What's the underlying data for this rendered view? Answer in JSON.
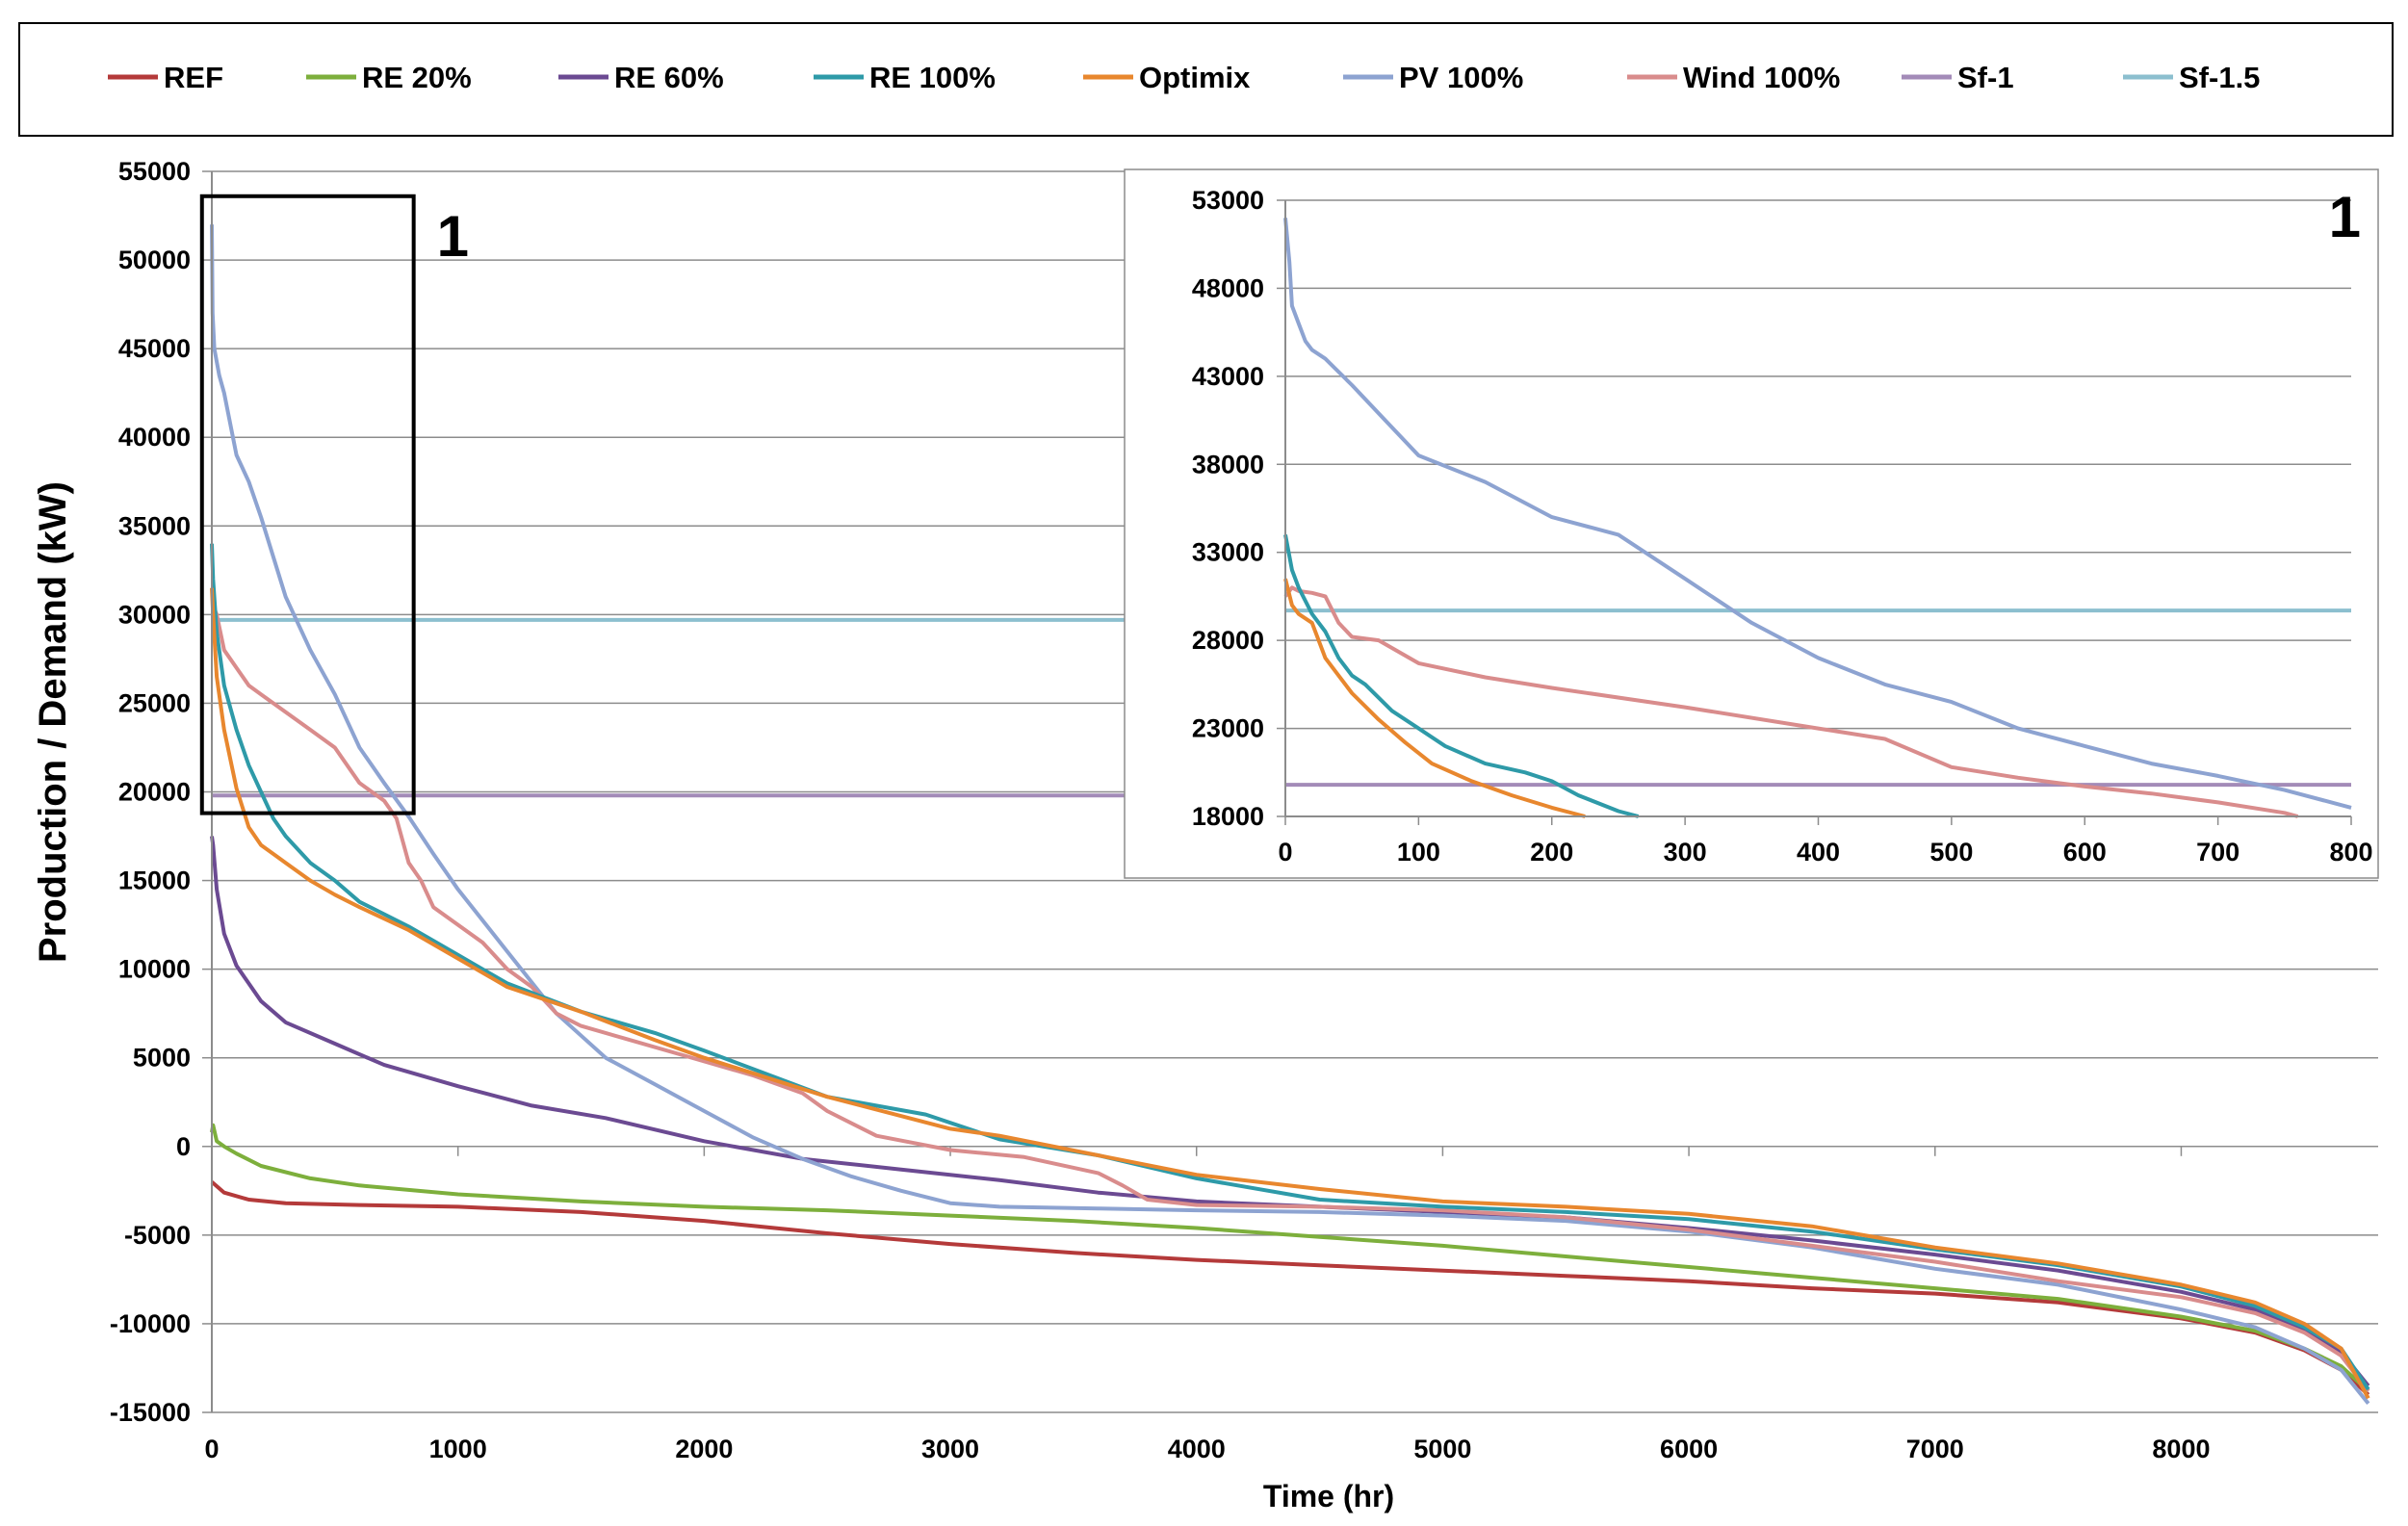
{
  "chart_data": [
    {
      "id": "main",
      "type": "line",
      "xlabel": "Time (hr)",
      "ylabel": "Production / Demand (kW)",
      "xlim": [
        0,
        8800
      ],
      "ylim": [
        -15000,
        55000
      ],
      "grid": true,
      "legend_position": "top",
      "xticks": [
        0,
        1000,
        2000,
        3000,
        4000,
        5000,
        6000,
        7000,
        8000
      ],
      "xtick_labels": [
        "0",
        "1000",
        "2000",
        "3000",
        "4000",
        "5000",
        "6000",
        "7000",
        "8000"
      ],
      "yticks": [
        55000,
        50000,
        45000,
        40000,
        35000,
        30000,
        25000,
        20000,
        15000,
        10000,
        5000,
        0,
        -5000,
        -10000,
        -15000
      ],
      "ytick_labels": [
        "55000",
        "50000",
        "45000",
        "40000",
        "35000",
        "30000",
        "25000",
        "20000",
        "15000",
        "10000",
        "5000",
        "0",
        "-5000",
        "-10000",
        "-15000"
      ],
      "zoom_box": {
        "x": [
          -40,
          820
        ],
        "y": [
          18800,
          53600
        ],
        "label": "1"
      },
      "series": [
        {
          "name": "REF",
          "color": "#B43A3A",
          "x": [
            0,
            50,
            150,
            300,
            600,
            1000,
            1500,
            2000,
            2500,
            3000,
            3500,
            4000,
            4500,
            5000,
            5500,
            6000,
            6500,
            7000,
            7500,
            8000,
            8300,
            8500,
            8650,
            8760
          ],
          "y": [
            -2000,
            -2600,
            -3000,
            -3200,
            -3300,
            -3400,
            -3700,
            -4200,
            -4900,
            -5500,
            -6000,
            -6400,
            -6700,
            -7000,
            -7300,
            -7600,
            -8000,
            -8300,
            -8800,
            -9700,
            -10500,
            -11500,
            -12600,
            -14000
          ]
        },
        {
          "name": "RE 20%",
          "color": "#7DAF3C",
          "x": [
            0,
            5,
            20,
            50,
            100,
            200,
            400,
            600,
            1000,
            1500,
            2000,
            2500,
            3000,
            3500,
            4000,
            4500,
            5000,
            5500,
            6000,
            6500,
            7000,
            7500,
            8000,
            8300,
            8500,
            8650,
            8760
          ],
          "y": [
            800,
            1200,
            300,
            0,
            -400,
            -1100,
            -1800,
            -2200,
            -2700,
            -3100,
            -3400,
            -3600,
            -3900,
            -4200,
            -4600,
            -5100,
            -5600,
            -6200,
            -6800,
            -7400,
            -8000,
            -8600,
            -9600,
            -10400,
            -11400,
            -12400,
            -13800
          ]
        },
        {
          "name": "RE 60%",
          "color": "#6B4A92",
          "x": [
            0,
            5,
            20,
            50,
            100,
            200,
            300,
            500,
            700,
            1000,
            1300,
            1600,
            2000,
            2400,
            2800,
            3200,
            3600,
            4000,
            4500,
            5000,
            5500,
            6000,
            6500,
            7000,
            7500,
            8000,
            8300,
            8500,
            8650,
            8760
          ],
          "y": [
            17500,
            17000,
            14500,
            12000,
            10200,
            8200,
            7000,
            5800,
            4600,
            3400,
            2300,
            1600,
            300,
            -700,
            -1300,
            -1900,
            -2600,
            -3100,
            -3400,
            -3700,
            -4000,
            -4600,
            -5300,
            -6100,
            -7000,
            -8200,
            -9200,
            -10400,
            -11600,
            -13500
          ]
        },
        {
          "name": "RE 100%",
          "color": "#2E9AA8",
          "x": [
            0,
            5,
            20,
            50,
            100,
            150,
            200,
            250,
            300,
            400,
            500,
            600,
            800,
            1000,
            1200,
            1500,
            1800,
            2000,
            2500,
            2900,
            3200,
            3600,
            4000,
            4500,
            5000,
            5500,
            6000,
            6500,
            7000,
            7500,
            8000,
            8300,
            8500,
            8650,
            8760
          ],
          "y": [
            34000,
            32000,
            29000,
            26000,
            23500,
            21500,
            20000,
            18500,
            17500,
            16000,
            15000,
            13800,
            12400,
            10800,
            9200,
            7600,
            6400,
            5400,
            2800,
            1800,
            400,
            -500,
            -1800,
            -3000,
            -3400,
            -3700,
            -4100,
            -4800,
            -5800,
            -6700,
            -7900,
            -9000,
            -10200,
            -11400,
            -13700
          ]
        },
        {
          "name": "Optimix",
          "color": "#E8872E",
          "x": [
            0,
            5,
            20,
            50,
            100,
            150,
            200,
            300,
            400,
            500,
            600,
            800,
            1000,
            1200,
            1500,
            1800,
            2000,
            2500,
            3000,
            3200,
            3600,
            4000,
            4500,
            5000,
            5500,
            6000,
            6500,
            7000,
            7500,
            8000,
            8300,
            8500,
            8650,
            8760
          ],
          "y": [
            31500,
            30000,
            26500,
            23500,
            20200,
            18000,
            17000,
            16000,
            15000,
            14200,
            13500,
            12200,
            10600,
            9000,
            7600,
            6000,
            5000,
            2800,
            1000,
            600,
            -500,
            -1600,
            -2400,
            -3100,
            -3400,
            -3800,
            -4500,
            -5700,
            -6600,
            -7800,
            -8800,
            -10000,
            -11400,
            -14200
          ]
        },
        {
          "name": "PV 100%",
          "color": "#8DA3D1",
          "x": [
            0,
            3,
            10,
            30,
            50,
            100,
            150,
            200,
            300,
            400,
            500,
            600,
            700,
            800,
            900,
            1000,
            1200,
            1400,
            1600,
            1800,
            2000,
            2200,
            2400,
            2600,
            2800,
            3000,
            3200,
            3600,
            4000,
            4500,
            5000,
            5500,
            6000,
            6500,
            7000,
            7500,
            8000,
            8300,
            8500,
            8650,
            8760
          ],
          "y": [
            52000,
            47000,
            45000,
            43500,
            42500,
            39000,
            37500,
            35500,
            31000,
            28000,
            25500,
            22500,
            20500,
            18600,
            16500,
            14500,
            11000,
            7500,
            5000,
            3500,
            2000,
            500,
            -700,
            -1700,
            -2500,
            -3200,
            -3400,
            -3500,
            -3600,
            -3700,
            -3900,
            -4200,
            -4800,
            -5700,
            -6900,
            -7800,
            -9200,
            -10200,
            -11400,
            -12600,
            -14500
          ]
        },
        {
          "name": "Wind 100%",
          "color": "#D98C8C",
          "x": [
            0,
            5,
            20,
            50,
            100,
            150,
            200,
            300,
            400,
            500,
            600,
            700,
            750,
            800,
            850,
            900,
            1000,
            1100,
            1200,
            1300,
            1400,
            1500,
            1700,
            1900,
            2200,
            2400,
            2500,
            2700,
            3000,
            3300,
            3600,
            3700,
            3800,
            4000,
            4500,
            5000,
            5500,
            6000,
            6500,
            7000,
            7500,
            8000,
            8300,
            8500,
            8650,
            8760
          ],
          "y": [
            30500,
            30500,
            30000,
            28000,
            27000,
            26000,
            25500,
            24500,
            23500,
            22500,
            20500,
            19500,
            18500,
            16000,
            15000,
            13500,
            12500,
            11500,
            10000,
            9000,
            7500,
            6800,
            6000,
            5200,
            4000,
            3000,
            2000,
            600,
            -200,
            -600,
            -1500,
            -2200,
            -3000,
            -3300,
            -3400,
            -3600,
            -4000,
            -4700,
            -5600,
            -6500,
            -7600,
            -8500,
            -9400,
            -10500,
            -11800,
            -13800
          ]
        },
        {
          "name": "Sf-1",
          "color": "#A38BB8",
          "x": [
            0,
            8800
          ],
          "y": [
            19800,
            19800
          ]
        },
        {
          "name": "Sf-1.5",
          "color": "#8CBFCF",
          "x": [
            0,
            8800
          ],
          "y": [
            29700,
            29700
          ]
        }
      ]
    },
    {
      "id": "inset",
      "type": "line",
      "label": "1",
      "xlim": [
        0,
        800
      ],
      "ylim": [
        18000,
        53000
      ],
      "grid": true,
      "xticks": [
        0,
        100,
        200,
        300,
        400,
        500,
        600,
        700,
        800
      ],
      "xtick_labels": [
        "0",
        "100",
        "200",
        "300",
        "400",
        "500",
        "600",
        "700",
        "800"
      ],
      "yticks": [
        53000,
        48000,
        43000,
        38000,
        33000,
        28000,
        23000,
        18000
      ],
      "ytick_labels": [
        "53000",
        "48000",
        "43000",
        "38000",
        "33000",
        "28000",
        "23000",
        "18000"
      ],
      "series": [
        {
          "name": "PV 100%",
          "color": "#8DA3D1",
          "x": [
            0,
            3,
            5,
            10,
            15,
            20,
            30,
            50,
            75,
            100,
            150,
            200,
            250,
            300,
            350,
            400,
            450,
            500,
            550,
            600,
            650,
            700,
            750,
            800
          ],
          "y": [
            52000,
            49500,
            47000,
            46000,
            45000,
            44500,
            44000,
            42500,
            40500,
            38500,
            37000,
            35000,
            34000,
            31500,
            29000,
            27000,
            25500,
            24500,
            23000,
            22000,
            21000,
            20300,
            19500,
            18500
          ]
        },
        {
          "name": "RE 100%",
          "color": "#2E9AA8",
          "x": [
            0,
            5,
            10,
            20,
            30,
            40,
            50,
            60,
            80,
            100,
            120,
            150,
            180,
            200,
            220,
            250,
            265
          ],
          "y": [
            34000,
            32000,
            31000,
            29500,
            28500,
            27000,
            26000,
            25500,
            24000,
            23000,
            22000,
            21000,
            20500,
            20000,
            19200,
            18300,
            18000
          ]
        },
        {
          "name": "Optimix",
          "color": "#E8872E",
          "x": [
            0,
            5,
            10,
            20,
            30,
            40,
            50,
            70,
            90,
            110,
            140,
            170,
            200,
            225
          ],
          "y": [
            31500,
            30000,
            29500,
            29000,
            27000,
            26000,
            25000,
            23500,
            22200,
            21000,
            20000,
            19200,
            18500,
            18000
          ]
        },
        {
          "name": "Wind 100%",
          "color": "#D98C8C",
          "x": [
            0,
            5,
            10,
            20,
            30,
            40,
            50,
            70,
            100,
            150,
            200,
            300,
            400,
            450,
            500,
            550,
            600,
            650,
            700,
            750,
            760
          ],
          "y": [
            30500,
            31000,
            30800,
            30700,
            30500,
            29000,
            28200,
            28000,
            26700,
            25900,
            25300,
            24200,
            23000,
            22400,
            20800,
            20200,
            19700,
            19300,
            18800,
            18200,
            18000
          ]
        },
        {
          "name": "Sf-1",
          "color": "#A38BB8",
          "x": [
            0,
            800
          ],
          "y": [
            19800,
            19800
          ]
        },
        {
          "name": "Sf-1.5",
          "color": "#8CBFCF",
          "x": [
            0,
            800
          ],
          "y": [
            29700,
            29700
          ]
        }
      ]
    }
  ]
}
